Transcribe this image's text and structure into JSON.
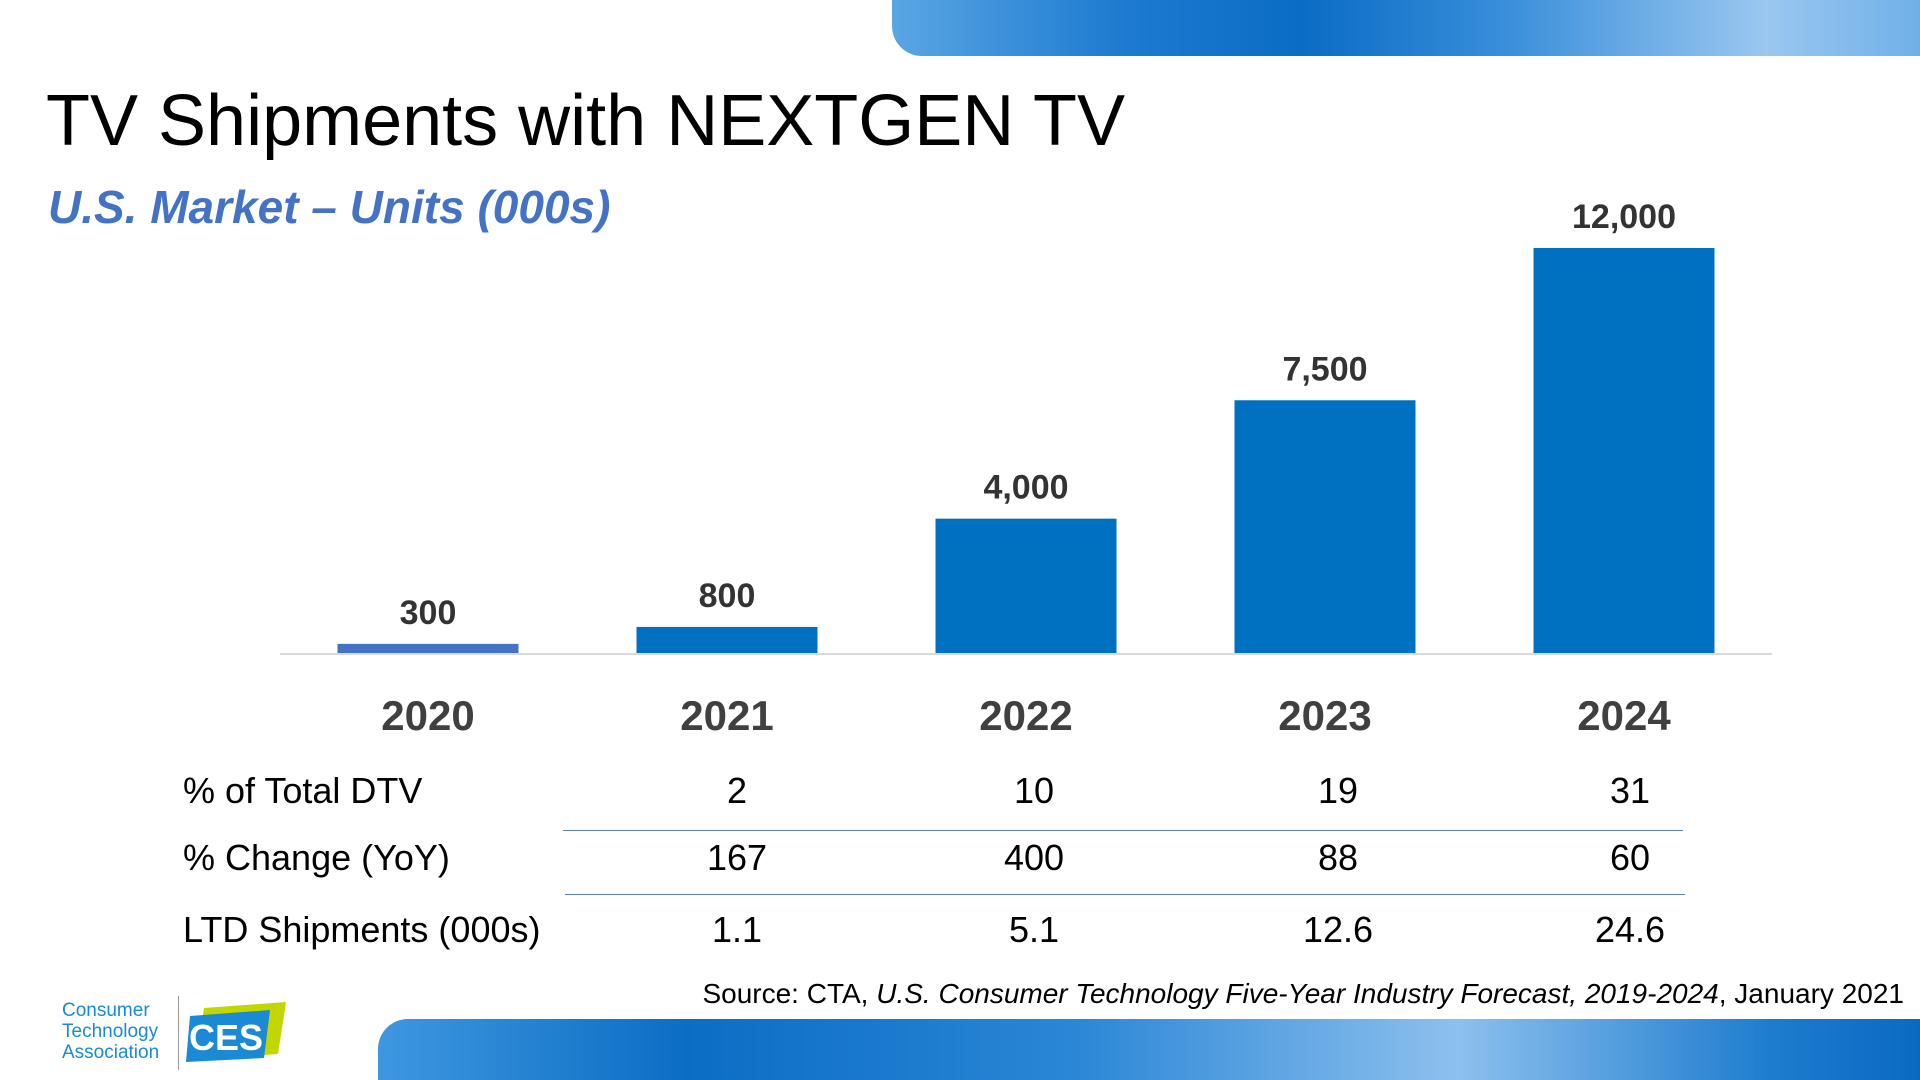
{
  "slide": {
    "title": "TV Shipments with NEXTGEN TV",
    "subtitle": "U.S. Market – Units (000s)"
  },
  "chart_data": {
    "type": "bar",
    "title": "TV Shipments with NEXTGEN TV",
    "subtitle": "U.S. Market – Units (000s)",
    "categories": [
      "2020",
      "2021",
      "2022",
      "2023",
      "2024"
    ],
    "values": [
      300,
      800,
      4000,
      7500,
      12000
    ],
    "value_labels": [
      "300",
      "800",
      "4,000",
      "7,500",
      "12,000"
    ],
    "ylim": [
      0,
      12000
    ],
    "grid": false,
    "legend": "none",
    "colors": {
      "bar": "#0070c0",
      "first_bar": "#4472c4"
    }
  },
  "table": {
    "rows": [
      {
        "label": "% of Total DTV",
        "values": [
          "2",
          "10",
          "19",
          "31"
        ]
      },
      {
        "label": "% Change (YoY)",
        "values": [
          "167",
          "400",
          "88",
          "60"
        ]
      },
      {
        "label": "LTD Shipments (000s)",
        "values": [
          "1.1",
          "5.1",
          "12.6",
          "24.6"
        ]
      }
    ]
  },
  "source": {
    "prefix": "Source: CTA, ",
    "publication": "U.S. Consumer Technology Five-Year Industry Forecast, 2019-2024",
    "suffix": ", January 2021"
  },
  "logos": {
    "cta_lines": [
      "Consumer",
      "Technology",
      "Association"
    ],
    "ces_text": "CES"
  }
}
